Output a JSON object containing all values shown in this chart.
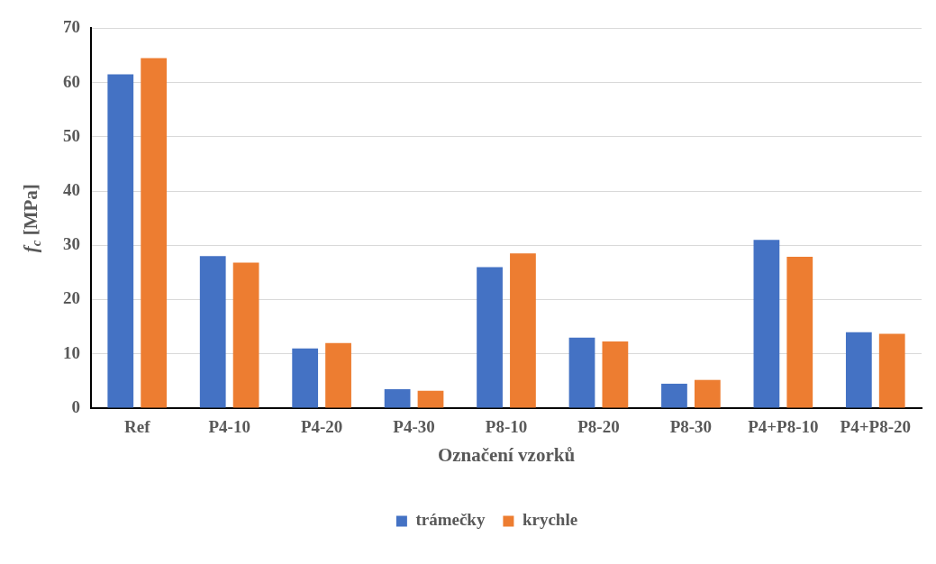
{
  "chart_data": {
    "type": "bar",
    "xlabel": "Označení vzorků",
    "ylabel": "f$_{c}$ [MPa]",
    "categories": [
      "Ref",
      "P4-10",
      "P4-20",
      "P4-30",
      "P8-10",
      "P8-20",
      "P8-30",
      "P4+P8-10",
      "P4+P8-20"
    ],
    "series": [
      {
        "name": "trámečky",
        "color": "#4472c4",
        "values": [
          61.5,
          28,
          11,
          3.5,
          26,
          13,
          4.5,
          31,
          14
        ]
      },
      {
        "name": "krychle",
        "color": "#ed7d31",
        "values": [
          64.5,
          26.8,
          12,
          3.2,
          28.5,
          12.3,
          5.2,
          27.9,
          13.7
        ]
      }
    ],
    "ylim": [
      0,
      70
    ],
    "yticks": [
      0,
      10,
      20,
      30,
      40,
      50,
      60,
      70
    ],
    "grid": "y",
    "legend": "bottom"
  }
}
